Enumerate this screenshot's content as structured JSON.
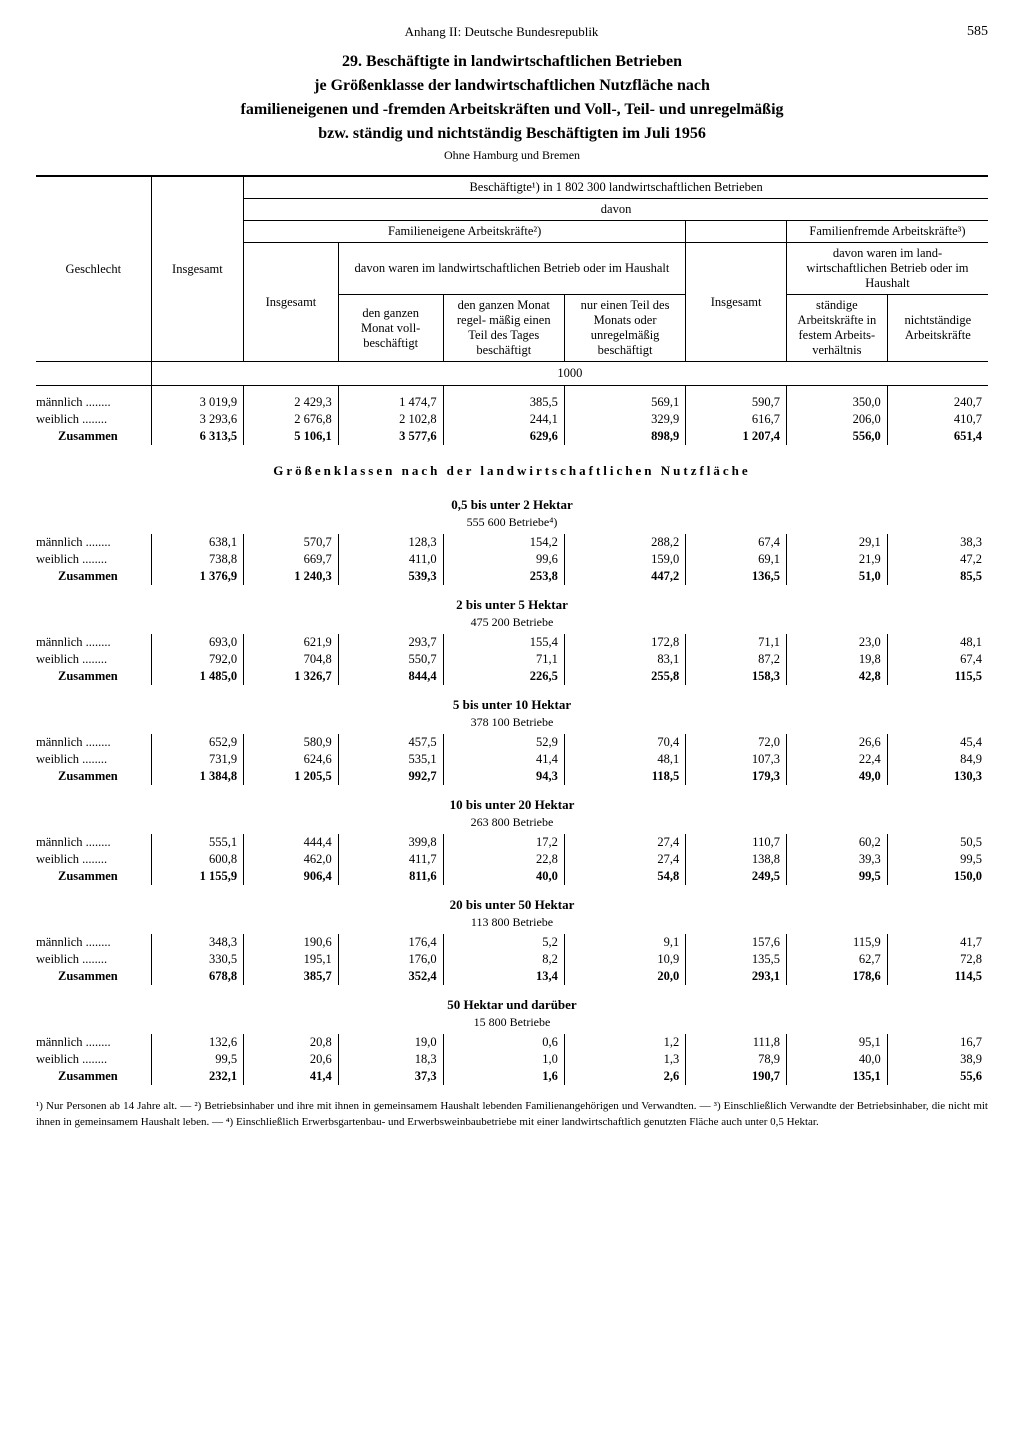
{
  "header": {
    "center": "Anhang II: Deutsche Bundesrepublik",
    "page": "585"
  },
  "title": {
    "l1": "29. Beschäftigte in landwirtschaftlichen Betrieben",
    "l2": "je Größenklasse der landwirtschaftlichen Nutzfläche nach",
    "l3": "familieneigenen und -fremden Arbeitskräften und Voll-, Teil- und unregelmäßig",
    "l4": "bzw. ständig und nichtständig Beschäftigten im Juli 1956"
  },
  "subtitle": "Ohne Hamburg und Bremen",
  "head": {
    "col0": "Geschlecht",
    "col1": "Insgesamt",
    "top": "Beschäftigte¹) in 1 802 300 landwirtschaftlichen Betrieben",
    "davon": "davon",
    "famE": "Familieneigene Arbeitskräfte²)",
    "famF": "Familienfremde Arbeitskräfte³)",
    "sub_famE": "davon waren im landwirtschaftlichen Betrieb oder im Haushalt",
    "sub_famF": "davon waren im land-\nwirtschaftlichen Betrieb oder im Haushalt",
    "c2": "Insgesamt",
    "c3": "den ganzen Monat voll-\nbeschäftigt",
    "c4": "den ganzen Monat regel-\nmäßig einen Teil des Tages beschäftigt",
    "c5": "nur einen Teil des Monats oder unregelmäßig beschäftigt",
    "c6": "Insgesamt",
    "c7": "ständige Arbeitskräfte in festem Arbeits-\nverhältnis",
    "c8": "nichtständige Arbeitskräfte",
    "unit": "1000"
  },
  "rows_main": {
    "r1": {
      "label": "männlich",
      "vals": [
        "3 019,9",
        "2 429,3",
        "1 474,7",
        "385,5",
        "569,1",
        "590,7",
        "350,0",
        "240,7"
      ]
    },
    "r2": {
      "label": "weiblich",
      "vals": [
        "3 293,6",
        "2 676,8",
        "2 102,8",
        "244,1",
        "329,9",
        "616,7",
        "206,0",
        "410,7"
      ]
    },
    "r3": {
      "label": "Zusammen",
      "vals": [
        "6 313,5",
        "5 106,1",
        "3 577,6",
        "629,6",
        "898,9",
        "1 207,4",
        "556,0",
        "651,4"
      ]
    }
  },
  "section_title": "Größenklassen nach der landwirtschaftlichen Nutzfläche",
  "groups": [
    {
      "title": "0,5 bis unter 2 Hektar",
      "sub": "555 600 Betriebe⁴)",
      "rows": [
        {
          "label": "männlich",
          "vals": [
            "638,1",
            "570,7",
            "128,3",
            "154,2",
            "288,2",
            "67,4",
            "29,1",
            "38,3"
          ]
        },
        {
          "label": "weiblich",
          "vals": [
            "738,8",
            "669,7",
            "411,0",
            "99,6",
            "159,0",
            "69,1",
            "21,9",
            "47,2"
          ]
        },
        {
          "label": "Zusammen",
          "vals": [
            "1 376,9",
            "1 240,3",
            "539,3",
            "253,8",
            "447,2",
            "136,5",
            "51,0",
            "85,5"
          ]
        }
      ]
    },
    {
      "title": "2 bis unter 5 Hektar",
      "sub": "475 200 Betriebe",
      "rows": [
        {
          "label": "männlich",
          "vals": [
            "693,0",
            "621,9",
            "293,7",
            "155,4",
            "172,8",
            "71,1",
            "23,0",
            "48,1"
          ]
        },
        {
          "label": "weiblich",
          "vals": [
            "792,0",
            "704,8",
            "550,7",
            "71,1",
            "83,1",
            "87,2",
            "19,8",
            "67,4"
          ]
        },
        {
          "label": "Zusammen",
          "vals": [
            "1 485,0",
            "1 326,7",
            "844,4",
            "226,5",
            "255,8",
            "158,3",
            "42,8",
            "115,5"
          ]
        }
      ]
    },
    {
      "title": "5 bis unter 10 Hektar",
      "sub": "378 100 Betriebe",
      "rows": [
        {
          "label": "männlich",
          "vals": [
            "652,9",
            "580,9",
            "457,5",
            "52,9",
            "70,4",
            "72,0",
            "26,6",
            "45,4"
          ]
        },
        {
          "label": "weiblich",
          "vals": [
            "731,9",
            "624,6",
            "535,1",
            "41,4",
            "48,1",
            "107,3",
            "22,4",
            "84,9"
          ]
        },
        {
          "label": "Zusammen",
          "vals": [
            "1 384,8",
            "1 205,5",
            "992,7",
            "94,3",
            "118,5",
            "179,3",
            "49,0",
            "130,3"
          ]
        }
      ]
    },
    {
      "title": "10 bis unter 20 Hektar",
      "sub": "263 800 Betriebe",
      "rows": [
        {
          "label": "männlich",
          "vals": [
            "555,1",
            "444,4",
            "399,8",
            "17,2",
            "27,4",
            "110,7",
            "60,2",
            "50,5"
          ]
        },
        {
          "label": "weiblich",
          "vals": [
            "600,8",
            "462,0",
            "411,7",
            "22,8",
            "27,4",
            "138,8",
            "39,3",
            "99,5"
          ]
        },
        {
          "label": "Zusammen",
          "vals": [
            "1 155,9",
            "906,4",
            "811,6",
            "40,0",
            "54,8",
            "249,5",
            "99,5",
            "150,0"
          ]
        }
      ]
    },
    {
      "title": "20 bis unter 50 Hektar",
      "sub": "113 800 Betriebe",
      "rows": [
        {
          "label": "männlich",
          "vals": [
            "348,3",
            "190,6",
            "176,4",
            "5,2",
            "9,1",
            "157,6",
            "115,9",
            "41,7"
          ]
        },
        {
          "label": "weiblich",
          "vals": [
            "330,5",
            "195,1",
            "176,0",
            "8,2",
            "10,9",
            "135,5",
            "62,7",
            "72,8"
          ]
        },
        {
          "label": "Zusammen",
          "vals": [
            "678,8",
            "385,7",
            "352,4",
            "13,4",
            "20,0",
            "293,1",
            "178,6",
            "114,5"
          ]
        }
      ]
    },
    {
      "title": "50 Hektar und darüber",
      "sub": "15 800 Betriebe",
      "rows": [
        {
          "label": "männlich",
          "vals": [
            "132,6",
            "20,8",
            "19,0",
            "0,6",
            "1,2",
            "111,8",
            "95,1",
            "16,7"
          ]
        },
        {
          "label": "weiblich",
          "vals": [
            "99,5",
            "20,6",
            "18,3",
            "1,0",
            "1,3",
            "78,9",
            "40,0",
            "38,9"
          ]
        },
        {
          "label": "Zusammen",
          "vals": [
            "232,1",
            "41,4",
            "37,3",
            "1,6",
            "2,6",
            "190,7",
            "135,1",
            "55,6"
          ]
        }
      ]
    }
  ],
  "footnote": "¹) Nur Personen ab 14 Jahre alt. — ²) Betriebsinhaber und ihre mit ihnen in gemeinsamem Haushalt lebenden Familienangehörigen und Verwandten. — ³) Einschließlich Verwandte der Betriebsinhaber, die nicht mit ihnen in gemeinsamem Haushalt leben. — ⁴) Einschließlich Erwerbsgartenbau- und Erwerbsweinbaubetriebe mit einer landwirtschaftlich genutzten Fläche auch unter 0,5 Hektar.",
  "col_widths": [
    "112",
    "90",
    "92",
    "102",
    "118",
    "118",
    "98",
    "98",
    "98"
  ]
}
